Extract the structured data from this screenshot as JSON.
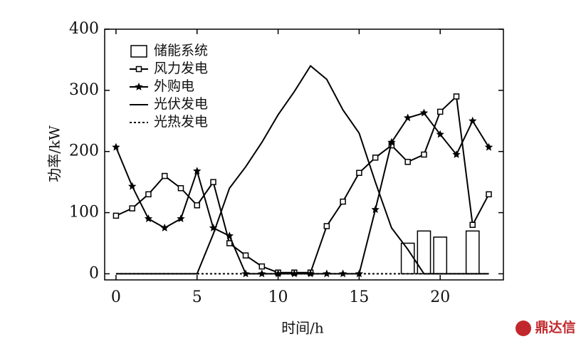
{
  "chart_data": {
    "type": "line",
    "xlabel": "时间/h",
    "ylabel": "功率/kW",
    "x": [
      0,
      1,
      2,
      3,
      4,
      5,
      6,
      7,
      8,
      9,
      10,
      11,
      12,
      13,
      14,
      15,
      16,
      17,
      18,
      19,
      20,
      21,
      22,
      23
    ],
    "xlim": [
      -0.7,
      23.9
    ],
    "xticks": [
      0,
      5,
      10,
      15,
      20
    ],
    "ylim": [
      -10,
      400
    ],
    "yticks": [
      0,
      100,
      200,
      300,
      400
    ],
    "series": [
      {
        "name": "储能系统",
        "type": "bar",
        "color": "#000000",
        "values": [
          0,
          0,
          0,
          0,
          0,
          0,
          0,
          0,
          0,
          0,
          0,
          0,
          0,
          0,
          0,
          0,
          0,
          0,
          50,
          70,
          60,
          0,
          70,
          0
        ]
      },
      {
        "name": "风力发电",
        "type": "line",
        "marker": "square",
        "color": "#000000",
        "values": [
          95,
          107,
          130,
          160,
          140,
          112,
          150,
          50,
          30,
          12,
          2,
          2,
          2,
          78,
          118,
          165,
          190,
          210,
          183,
          195,
          265,
          290,
          80,
          130
        ]
      },
      {
        "name": "外购电",
        "type": "line",
        "marker": "star",
        "color": "#000000",
        "values": [
          207,
          143,
          90,
          75,
          90,
          168,
          75,
          62,
          0,
          0,
          0,
          0,
          0,
          0,
          0,
          0,
          105,
          215,
          255,
          263,
          228,
          195,
          250,
          207
        ]
      },
      {
        "name": "光伏发电",
        "type": "line",
        "color": "#000000",
        "values": [
          0,
          0,
          0,
          0,
          0,
          0,
          65,
          140,
          175,
          215,
          260,
          298,
          340,
          318,
          268,
          230,
          150,
          75,
          40,
          0,
          0,
          0,
          0,
          0
        ]
      },
      {
        "name": "光热发电",
        "type": "line",
        "dash": true,
        "color": "#000000",
        "values": [
          0,
          0,
          0,
          0,
          0,
          0,
          0,
          0,
          0,
          0,
          0,
          0,
          0,
          0,
          0,
          0,
          0,
          0,
          0,
          0,
          0,
          0,
          0,
          0
        ]
      }
    ],
    "watermark": "鼎达信"
  }
}
